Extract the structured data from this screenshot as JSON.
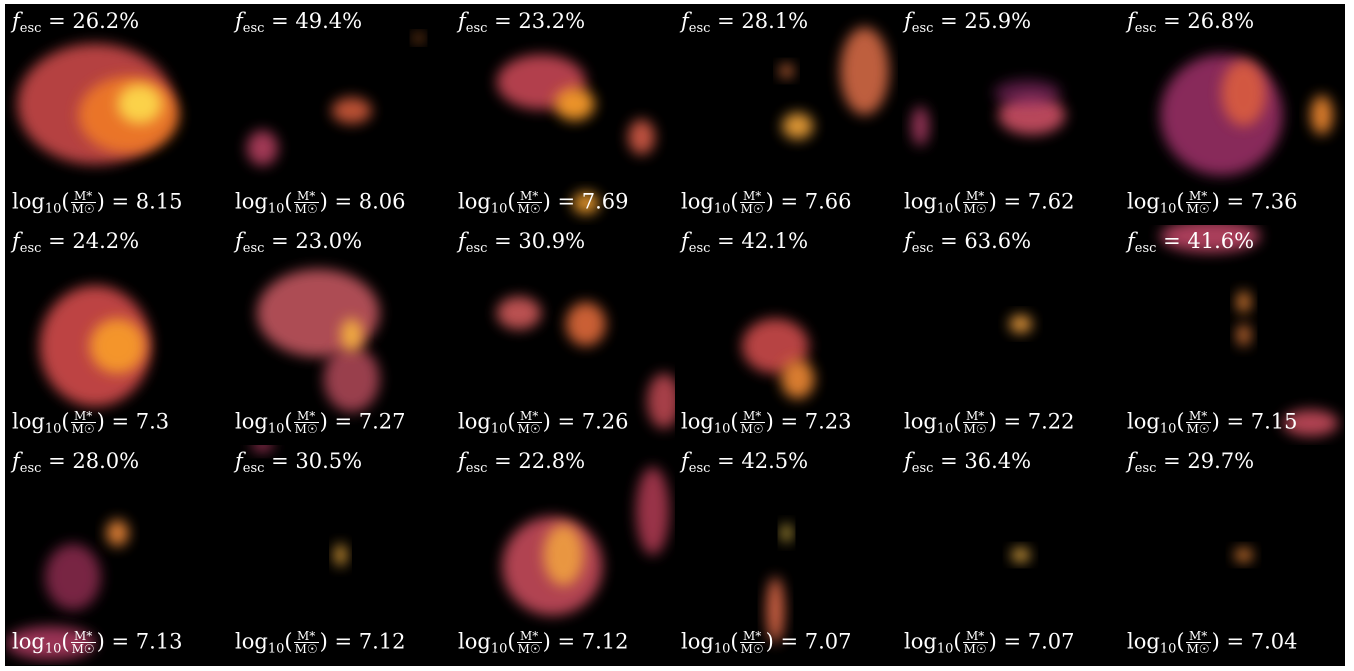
{
  "panels": [
    {
      "fesc_text": "26.2%",
      "logm_text": "8.15"
    },
    {
      "fesc_text": "49.4%",
      "logm_text": "8.06"
    },
    {
      "fesc_text": "23.2%",
      "logm_text": "7.69"
    },
    {
      "fesc_text": "28.1%",
      "logm_text": "7.66"
    },
    {
      "fesc_text": "25.9%",
      "logm_text": "7.62"
    },
    {
      "fesc_text": "26.8%",
      "logm_text": "7.36"
    },
    {
      "fesc_text": "24.2%",
      "logm_text": "7.3"
    },
    {
      "fesc_text": "23.0%",
      "logm_text": "7.27"
    },
    {
      "fesc_text": "30.9%",
      "logm_text": "7.26"
    },
    {
      "fesc_text": "42.1%",
      "logm_text": "7.23"
    },
    {
      "fesc_text": "63.6%",
      "logm_text": "7.22"
    },
    {
      "fesc_text": "41.6%",
      "logm_text": "7.15"
    },
    {
      "fesc_text": "28.0%",
      "logm_text": "7.13"
    },
    {
      "fesc_text": "30.5%",
      "logm_text": "7.12"
    },
    {
      "fesc_text": "22.8%",
      "logm_text": "7.12"
    },
    {
      "fesc_text": "42.5%",
      "logm_text": "7.07"
    },
    {
      "fesc_text": "36.4%",
      "logm_text": "7.07"
    },
    {
      "fesc_text": "29.7%",
      "logm_text": "7.04"
    }
  ],
  "labels": {
    "fesc_symbol": "f",
    "fesc_sub": "esc",
    "eq": " = ",
    "log_prefix": "log",
    "log_sub": "10",
    "mass_num": "M*",
    "mass_den": "M☉"
  },
  "colors": {
    "background": "#000000",
    "label_text": "#ffffff",
    "colormap": [
      "#000004",
      "#1b0c41",
      "#4a0c6b",
      "#781c6d",
      "#a52c60",
      "#cf4446",
      "#ed6925",
      "#fb9b06",
      "#f7d13d",
      "#fcffa4"
    ]
  }
}
